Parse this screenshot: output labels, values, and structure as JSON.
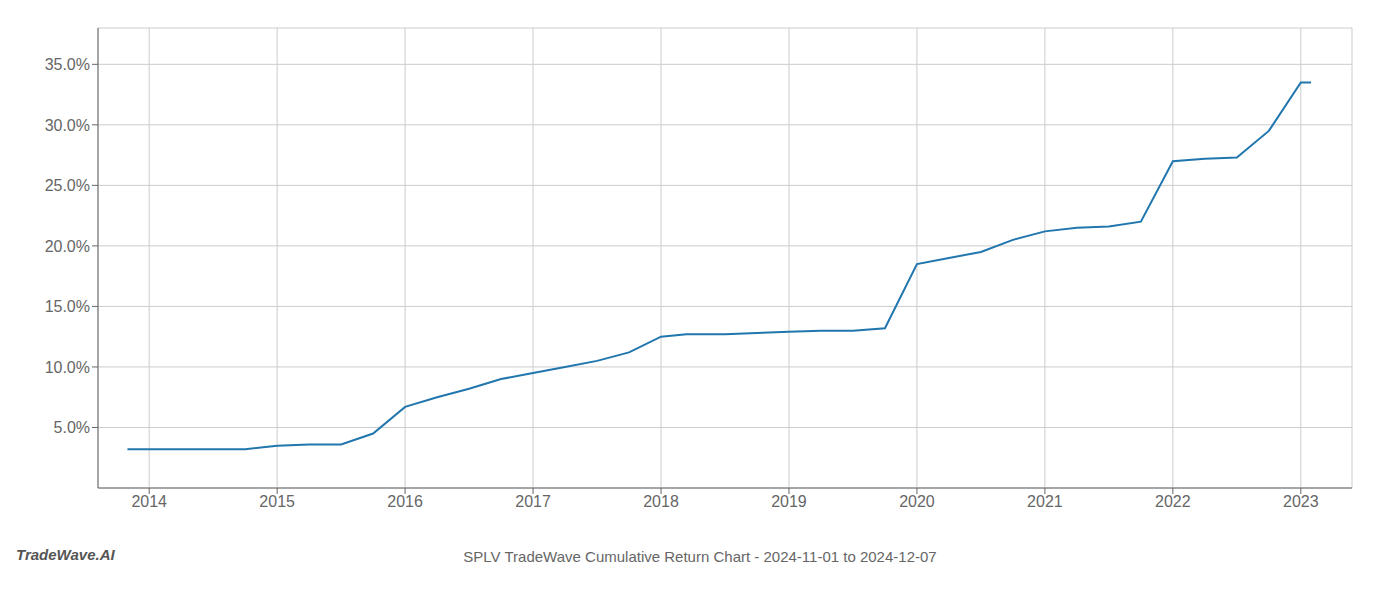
{
  "chart_data": {
    "type": "line",
    "title": "SPLV TradeWave Cumulative Return Chart - 2024-11-01 to 2024-12-07",
    "annotations": [
      "TradeWave.AI"
    ],
    "x": [
      2013.83,
      2014.0,
      2014.25,
      2014.5,
      2014.75,
      2015.0,
      2015.25,
      2015.5,
      2015.75,
      2016.0,
      2016.25,
      2016.5,
      2016.75,
      2017.0,
      2017.25,
      2017.5,
      2017.75,
      2018.0,
      2018.2,
      2018.5,
      2018.75,
      2019.0,
      2019.25,
      2019.5,
      2019.75,
      2020.0,
      2020.25,
      2020.5,
      2020.75,
      2021.0,
      2021.25,
      2021.5,
      2021.75,
      2022.0,
      2022.25,
      2022.5,
      2022.75,
      2023.0,
      2023.08
    ],
    "values": [
      3.2,
      3.2,
      3.2,
      3.2,
      3.2,
      3.5,
      3.6,
      3.6,
      4.5,
      6.7,
      7.5,
      8.2,
      9.0,
      9.5,
      10.0,
      10.5,
      11.2,
      12.5,
      12.7,
      12.7,
      12.8,
      12.9,
      13.0,
      13.0,
      13.2,
      18.5,
      19.0,
      19.5,
      20.5,
      21.2,
      21.5,
      21.6,
      22.0,
      27.0,
      27.2,
      27.3,
      29.5,
      33.5,
      33.5
    ],
    "color": "#2176ae",
    "xlim": [
      2013.6,
      2023.4
    ],
    "ylim": [
      0,
      38
    ],
    "xticks": [
      2014,
      2015,
      2016,
      2017,
      2018,
      2019,
      2020,
      2021,
      2022,
      2023
    ],
    "yticks": [
      {
        "value": 5.0,
        "label": "5.0%"
      },
      {
        "value": 10.0,
        "label": "10.0%"
      },
      {
        "value": 15.0,
        "label": "15.0%"
      },
      {
        "value": 20.0,
        "label": "20.0%"
      },
      {
        "value": 25.0,
        "label": "25.0%"
      },
      {
        "value": 30.0,
        "label": "30.0%"
      },
      {
        "value": 35.0,
        "label": "35.0%"
      }
    ],
    "grid": true
  }
}
